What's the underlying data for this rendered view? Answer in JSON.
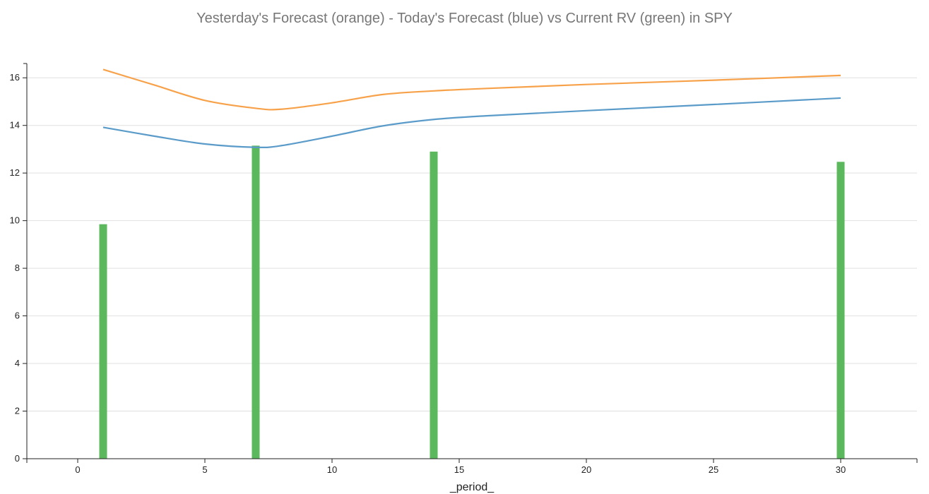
{
  "chart_data": {
    "type": "bar",
    "title": "Yesterday's Forecast (orange) - Today's Forecast (blue) vs Current RV (green) in SPY",
    "xlabel": "_period_",
    "ylabel": "",
    "xlim": [
      -2,
      33
    ],
    "ylim": [
      0,
      16.6
    ],
    "x_ticks": [
      0,
      5,
      10,
      15,
      20,
      25,
      30
    ],
    "y_ticks": [
      0,
      2,
      4,
      6,
      8,
      10,
      12,
      14,
      16
    ],
    "grid": "horizontal",
    "colors": {
      "orange": "#f7a24a",
      "blue": "#5a9bc9",
      "green": "#5cb85c",
      "grid": "#e0e0e0",
      "axis": "#222222"
    },
    "bars": {
      "color": "green",
      "x": [
        1,
        7,
        14,
        30
      ],
      "values": [
        9.85,
        13.15,
        12.9,
        12.47
      ]
    },
    "lines": [
      {
        "color": "orange",
        "points": [
          [
            1,
            16.35
          ],
          [
            3,
            15.7
          ],
          [
            5,
            15.05
          ],
          [
            7,
            14.72
          ],
          [
            8,
            14.68
          ],
          [
            10,
            14.95
          ],
          [
            12,
            15.3
          ],
          [
            14,
            15.45
          ],
          [
            16,
            15.55
          ],
          [
            20,
            15.72
          ],
          [
            25,
            15.9
          ],
          [
            30,
            16.1
          ]
        ]
      },
      {
        "color": "blue",
        "points": [
          [
            1,
            13.92
          ],
          [
            3,
            13.55
          ],
          [
            5,
            13.22
          ],
          [
            7,
            13.08
          ],
          [
            8,
            13.15
          ],
          [
            10,
            13.55
          ],
          [
            12,
            13.98
          ],
          [
            14,
            14.25
          ],
          [
            16,
            14.4
          ],
          [
            20,
            14.62
          ],
          [
            25,
            14.88
          ],
          [
            30,
            15.15
          ]
        ]
      }
    ]
  }
}
